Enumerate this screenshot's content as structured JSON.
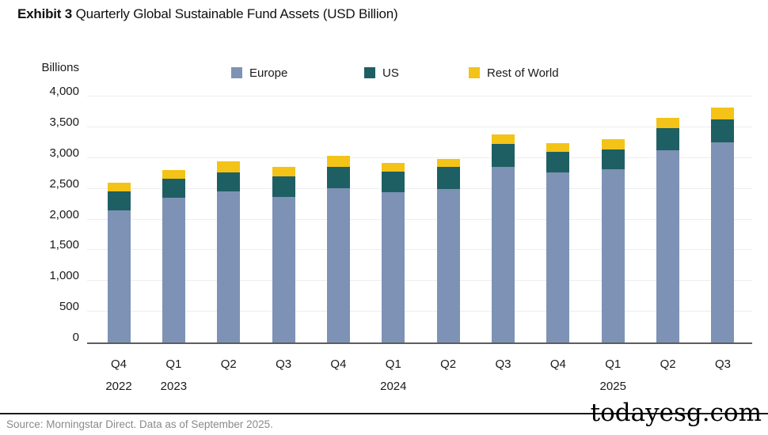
{
  "header": {
    "exhibit_label": "Exhibit 3",
    "title": "Quarterly Global Sustainable Fund Assets (USD Billion)"
  },
  "chart_data": {
    "type": "bar",
    "stacked": true,
    "title": "Quarterly Global Sustainable Fund Assets (USD Billion)",
    "ylabel": "Billions",
    "ylim": [
      0,
      4000
    ],
    "grid": true,
    "legend_position": "top",
    "yticks": [
      {
        "value": 0,
        "label": "0"
      },
      {
        "value": 500,
        "label": "500"
      },
      {
        "value": 1000,
        "label": "1,000"
      },
      {
        "value": 1500,
        "label": "1,500"
      },
      {
        "value": 2000,
        "label": "2,000"
      },
      {
        "value": 2500,
        "label": "2,500"
      },
      {
        "value": 3000,
        "label": "3,000"
      },
      {
        "value": 3500,
        "label": "3,500"
      },
      {
        "value": 4000,
        "label": "4,000"
      }
    ],
    "categories": [
      "Q4 2022",
      "Q1 2023",
      "Q2 2023",
      "Q3 2023",
      "Q4 2023",
      "Q1 2024",
      "Q2 2024",
      "Q3 2024",
      "Q4 2024",
      "Q1 2025",
      "Q2 2025",
      "Q3 2025"
    ],
    "x_ticks": [
      {
        "quarter": "Q4",
        "year": "2022"
      },
      {
        "quarter": "Q1",
        "year": "2023"
      },
      {
        "quarter": "Q2",
        "year": ""
      },
      {
        "quarter": "Q3",
        "year": ""
      },
      {
        "quarter": "Q4",
        "year": ""
      },
      {
        "quarter": "Q1",
        "year": "2024"
      },
      {
        "quarter": "Q2",
        "year": ""
      },
      {
        "quarter": "Q3",
        "year": ""
      },
      {
        "quarter": "Q4",
        "year": ""
      },
      {
        "quarter": "Q1",
        "year": "2025"
      },
      {
        "quarter": "Q2",
        "year": ""
      },
      {
        "quarter": "Q3",
        "year": ""
      }
    ],
    "series": [
      {
        "name": "Europe",
        "color": "#7D92B5",
        "values": [
          2150,
          2350,
          2460,
          2370,
          2510,
          2450,
          2490,
          2860,
          2760,
          2820,
          3120,
          3260
        ]
      },
      {
        "name": "US",
        "color": "#1E5F63",
        "values": [
          310,
          310,
          310,
          330,
          350,
          330,
          360,
          370,
          340,
          320,
          360,
          370
        ]
      },
      {
        "name": "Rest of World",
        "color": "#F3C317",
        "values": [
          140,
          150,
          170,
          150,
          170,
          140,
          140,
          150,
          140,
          170,
          170,
          190
        ]
      }
    ],
    "totals": [
      2600,
      2810,
      2940,
      2850,
      3030,
      2920,
      2990,
      3380,
      3240,
      3310,
      3650,
      3820
    ]
  },
  "footer": {
    "source": "Source: Morningstar Direct. Data as of September 2025.",
    "watermark": "todayesg.com"
  }
}
